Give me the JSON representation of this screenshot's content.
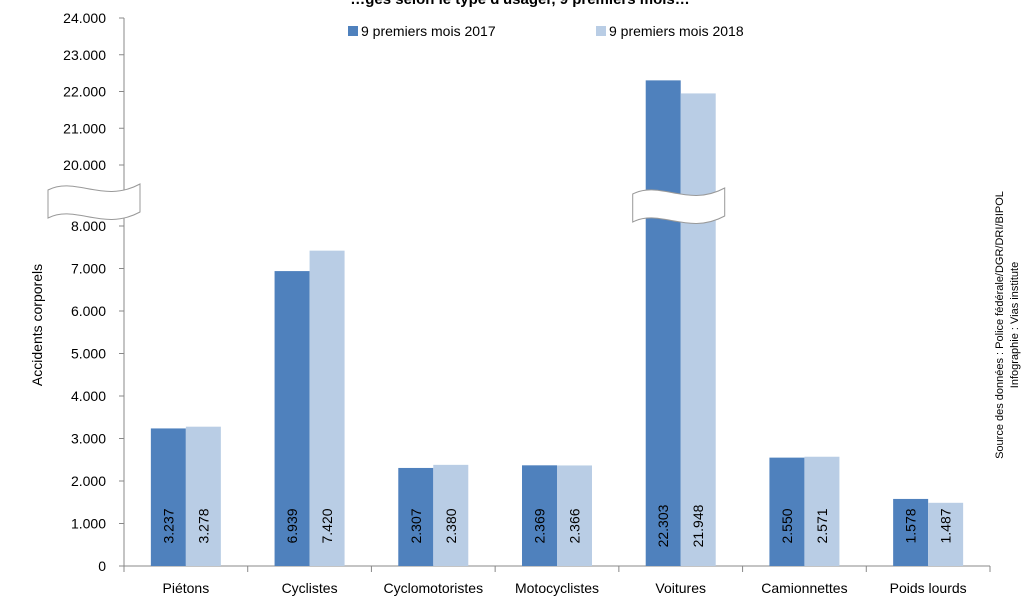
{
  "chart_data": {
    "type": "bar",
    "title": "…gés selon le type d'usager, 9 premiers mois…",
    "ylabel": "Accidents corporels",
    "xlabel": "",
    "categories": [
      "Piétons",
      "Cyclistes",
      "Cyclomotoristes",
      "Motocyclistes",
      "Voitures",
      "Camionnettes",
      "Poids lourds"
    ],
    "series": [
      {
        "name": "9 premiers mois 2017",
        "color": "#4f81bd",
        "values": [
          3237,
          6939,
          2307,
          2369,
          22303,
          2550,
          1578
        ],
        "labels": [
          "3.237",
          "6.939",
          "2.307",
          "2.369",
          "22.303",
          "2.550",
          "1.578"
        ]
      },
      {
        "name": "9 premiers mois 2018",
        "color": "#b9cde5",
        "values": [
          3278,
          7420,
          2380,
          2366,
          21948,
          2571,
          1487
        ],
        "labels": [
          "3.278",
          "7.420",
          "2.380",
          "2.366",
          "21.948",
          "2.571",
          "1.487"
        ]
      }
    ],
    "axis_break": {
      "lower_max": 8000,
      "upper_min": 20000
    },
    "ylim": [
      0,
      24000
    ],
    "yticks_lower": [
      "0",
      "1.000",
      "2.000",
      "3.000",
      "4.000",
      "5.000",
      "6.000",
      "7.000",
      "8.000"
    ],
    "yticks_upper": [
      "20.000",
      "21.000",
      "22.000",
      "23.000",
      "24.000"
    ],
    "legend_position": "top",
    "grid": false
  },
  "source": {
    "line1": "Source des données : Police fédérale/DGR/DRI/BIPOL",
    "line2": "Infographie : Vias institute"
  }
}
